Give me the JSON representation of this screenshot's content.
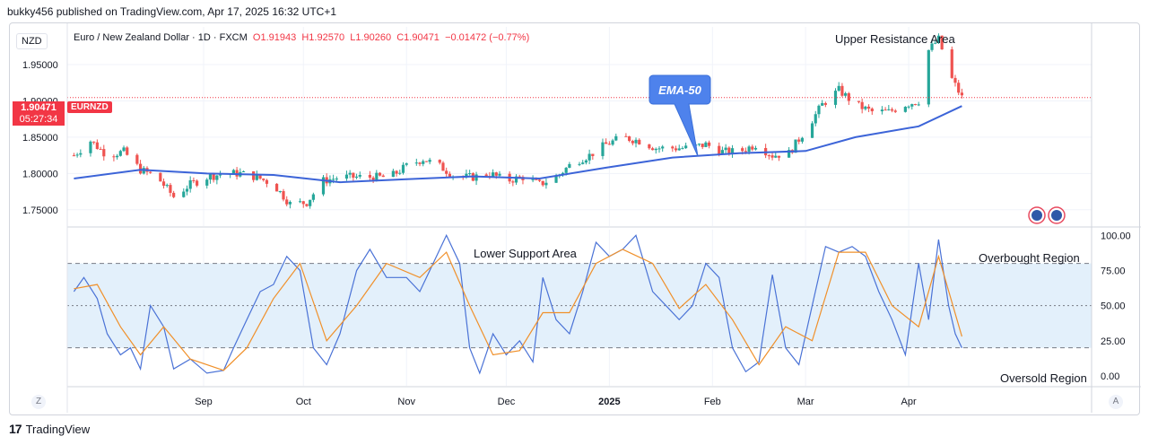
{
  "caption": "bukky456 published on TradingView.com, Apr 17, 2025 16:32 UTC+1",
  "currency_badge": "NZD",
  "legend": {
    "name": "Euro / New Zealand Dollar · 1D · FXCM",
    "open": "O1.91943",
    "high": "H1.92570",
    "low": "L1.90260",
    "close": "C1.90471",
    "change": "−0.01472 (−0.77%)"
  },
  "last_price": "1.90471",
  "countdown": "05:27:34",
  "symbol": "EURNZD",
  "goto_start_button": "Z",
  "auto_scale_button": "A",
  "branding": "TradingView",
  "colors": {
    "up": "#26a69a",
    "down": "#ef5350",
    "ema": "#3c64d8",
    "stoch_k": "#4a72d6",
    "stoch_d": "#f0902a",
    "band_fill": "#e3f0fb",
    "callout": "#4e82ec"
  },
  "chart_data": [
    {
      "type": "candlestick",
      "title": "Euro / New Zealand Dollar · 1D · FXCM",
      "x_ticks": [
        "Sep",
        "Oct",
        "Nov",
        "Dec",
        "2025",
        "Feb",
        "Mar",
        "Apr"
      ],
      "y_ticks": [
        "1.95000",
        "1.90000",
        "1.85000",
        "1.80000",
        "1.75000"
      ],
      "ylim": [
        1.7275,
        2.002
      ],
      "ema_label": "EMA-50",
      "annotations": [
        "Upper Resistance Area"
      ],
      "close_path": [
        {
          "date": "2024-07-24",
          "close": 1.825
        },
        {
          "date": "2024-07-29",
          "close": 1.845
        },
        {
          "date": "2024-08-03",
          "close": 1.825
        },
        {
          "date": "2024-08-08",
          "close": 1.83
        },
        {
          "date": "2024-08-13",
          "close": 1.805
        },
        {
          "date": "2024-08-18",
          "close": 1.795
        },
        {
          "date": "2024-08-23",
          "close": 1.768
        },
        {
          "date": "2024-08-28",
          "close": 1.785
        },
        {
          "date": "2024-09-02",
          "close": 1.795
        },
        {
          "date": "2024-09-07",
          "close": 1.8
        },
        {
          "date": "2024-09-12",
          "close": 1.8
        },
        {
          "date": "2024-09-17",
          "close": 1.795
        },
        {
          "date": "2024-09-22",
          "close": 1.785
        },
        {
          "date": "2024-09-27",
          "close": 1.758
        },
        {
          "date": "2024-10-02",
          "close": 1.76
        },
        {
          "date": "2024-10-07",
          "close": 1.79
        },
        {
          "date": "2024-10-12",
          "close": 1.795
        },
        {
          "date": "2024-10-17",
          "close": 1.795
        },
        {
          "date": "2024-10-22",
          "close": 1.795
        },
        {
          "date": "2024-10-27",
          "close": 1.795
        },
        {
          "date": "2024-11-01",
          "close": 1.81
        },
        {
          "date": "2024-11-06",
          "close": 1.82
        },
        {
          "date": "2024-11-11",
          "close": 1.81
        },
        {
          "date": "2024-11-16",
          "close": 1.795
        },
        {
          "date": "2024-11-21",
          "close": 1.795
        },
        {
          "date": "2024-11-26",
          "close": 1.8
        },
        {
          "date": "2024-12-01",
          "close": 1.79
        },
        {
          "date": "2024-12-06",
          "close": 1.795
        },
        {
          "date": "2024-12-11",
          "close": 1.785
        },
        {
          "date": "2024-12-16",
          "close": 1.795
        },
        {
          "date": "2024-12-21",
          "close": 1.815
        },
        {
          "date": "2024-12-26",
          "close": 1.825
        },
        {
          "date": "2024-12-31",
          "close": 1.84
        },
        {
          "date": "2025-01-05",
          "close": 1.85
        },
        {
          "date": "2025-01-10",
          "close": 1.845
        },
        {
          "date": "2025-01-15",
          "close": 1.835
        },
        {
          "date": "2025-01-20",
          "close": 1.835
        },
        {
          "date": "2025-01-25",
          "close": 1.835
        },
        {
          "date": "2025-01-30",
          "close": 1.84
        },
        {
          "date": "2025-02-04",
          "close": 1.83
        },
        {
          "date": "2025-02-09",
          "close": 1.83
        },
        {
          "date": "2025-02-14",
          "close": 1.84
        },
        {
          "date": "2025-02-19",
          "close": 1.825
        },
        {
          "date": "2025-02-24",
          "close": 1.828
        },
        {
          "date": "2025-03-01",
          "close": 1.86
        },
        {
          "date": "2025-03-06",
          "close": 1.895
        },
        {
          "date": "2025-03-11",
          "close": 1.915
        },
        {
          "date": "2025-03-16",
          "close": 1.895
        },
        {
          "date": "2025-03-21",
          "close": 1.885
        },
        {
          "date": "2025-03-26",
          "close": 1.885
        },
        {
          "date": "2025-03-31",
          "close": 1.895
        },
        {
          "date": "2025-04-04",
          "close": 1.9
        },
        {
          "date": "2025-04-07",
          "close": 1.97
        },
        {
          "date": "2025-04-10",
          "close": 1.985
        },
        {
          "date": "2025-04-14",
          "close": 1.93
        },
        {
          "date": "2025-04-17",
          "close": 1.9047
        }
      ],
      "ema50": [
        {
          "date": "2024-07-24",
          "value": 1.793
        },
        {
          "date": "2024-08-13",
          "value": 1.805
        },
        {
          "date": "2024-09-02",
          "value": 1.8
        },
        {
          "date": "2024-09-22",
          "value": 1.798
        },
        {
          "date": "2024-10-12",
          "value": 1.788
        },
        {
          "date": "2024-11-01",
          "value": 1.792
        },
        {
          "date": "2024-11-21",
          "value": 1.796
        },
        {
          "date": "2024-12-11",
          "value": 1.793
        },
        {
          "date": "2024-12-31",
          "value": 1.808
        },
        {
          "date": "2025-01-20",
          "value": 1.822
        },
        {
          "date": "2025-02-09",
          "value": 1.828
        },
        {
          "date": "2025-03-01",
          "value": 1.831
        },
        {
          "date": "2025-03-16",
          "value": 1.85
        },
        {
          "date": "2025-04-04",
          "value": 1.865
        },
        {
          "date": "2025-04-17",
          "value": 1.893
        }
      ]
    },
    {
      "type": "line",
      "title": "",
      "x_ticks": [
        "Sep",
        "Oct",
        "Nov",
        "Dec",
        "2025",
        "Feb",
        "Mar",
        "Apr"
      ],
      "y_ticks": [
        "100.00",
        "75.00",
        "50.00",
        "25.00",
        "0.00"
      ],
      "ylim": [
        -7,
        104
      ],
      "bands": {
        "upper": 80,
        "middle": 50,
        "lower": 20
      },
      "annotations": [
        "Lower Support Area",
        "Overbought Region",
        "Oversold Region"
      ],
      "series": [
        {
          "values": [
            {
              "date": "2024-07-24",
              "value": 60
            },
            {
              "date": "2024-07-27",
              "value": 70
            },
            {
              "date": "2024-07-31",
              "value": 55
            },
            {
              "date": "2024-08-03",
              "value": 30
            },
            {
              "date": "2024-08-07",
              "value": 15
            },
            {
              "date": "2024-08-10",
              "value": 20
            },
            {
              "date": "2024-08-13",
              "value": 5
            },
            {
              "date": "2024-08-16",
              "value": 50
            },
            {
              "date": "2024-08-20",
              "value": 35
            },
            {
              "date": "2024-08-23",
              "value": 5
            },
            {
              "date": "2024-08-28",
              "value": 12
            },
            {
              "date": "2024-09-02",
              "value": 2
            },
            {
              "date": "2024-09-07",
              "value": 4
            },
            {
              "date": "2024-09-10",
              "value": 20
            },
            {
              "date": "2024-09-14",
              "value": 40
            },
            {
              "date": "2024-09-18",
              "value": 60
            },
            {
              "date": "2024-09-22",
              "value": 65
            },
            {
              "date": "2024-09-26",
              "value": 85
            },
            {
              "date": "2024-09-30",
              "value": 75
            },
            {
              "date": "2024-10-04",
              "value": 20
            },
            {
              "date": "2024-10-08",
              "value": 8
            },
            {
              "date": "2024-10-12",
              "value": 30
            },
            {
              "date": "2024-10-17",
              "value": 75
            },
            {
              "date": "2024-10-21",
              "value": 90
            },
            {
              "date": "2024-10-26",
              "value": 70
            },
            {
              "date": "2024-11-01",
              "value": 70
            },
            {
              "date": "2024-11-05",
              "value": 60
            },
            {
              "date": "2024-11-09",
              "value": 80
            },
            {
              "date": "2024-11-13",
              "value": 100
            },
            {
              "date": "2024-11-17",
              "value": 80
            },
            {
              "date": "2024-11-20",
              "value": 20
            },
            {
              "date": "2024-11-23",
              "value": 2
            },
            {
              "date": "2024-11-27",
              "value": 30
            },
            {
              "date": "2024-12-01",
              "value": 15
            },
            {
              "date": "2024-12-05",
              "value": 25
            },
            {
              "date": "2024-12-09",
              "value": 10
            },
            {
              "date": "2024-12-12",
              "value": 70
            },
            {
              "date": "2024-12-16",
              "value": 40
            },
            {
              "date": "2024-12-20",
              "value": 30
            },
            {
              "date": "2024-12-24",
              "value": 60
            },
            {
              "date": "2024-12-28",
              "value": 95
            },
            {
              "date": "2025-01-01",
              "value": 85
            },
            {
              "date": "2025-01-05",
              "value": 90
            },
            {
              "date": "2025-01-09",
              "value": 100
            },
            {
              "date": "2025-01-14",
              "value": 60
            },
            {
              "date": "2025-01-18",
              "value": 50
            },
            {
              "date": "2025-01-22",
              "value": 40
            },
            {
              "date": "2025-01-26",
              "value": 50
            },
            {
              "date": "2025-01-30",
              "value": 80
            },
            {
              "date": "2025-02-03",
              "value": 70
            },
            {
              "date": "2025-02-07",
              "value": 20
            },
            {
              "date": "2025-02-11",
              "value": 3
            },
            {
              "date": "2025-02-15",
              "value": 10
            },
            {
              "date": "2025-02-19",
              "value": 72
            },
            {
              "date": "2025-02-23",
              "value": 20
            },
            {
              "date": "2025-02-27",
              "value": 8
            },
            {
              "date": "2025-03-03",
              "value": 50
            },
            {
              "date": "2025-03-07",
              "value": 92
            },
            {
              "date": "2025-03-11",
              "value": 88
            },
            {
              "date": "2025-03-15",
              "value": 92
            },
            {
              "date": "2025-03-19",
              "value": 85
            },
            {
              "date": "2025-03-23",
              "value": 60
            },
            {
              "date": "2025-03-27",
              "value": 40
            },
            {
              "date": "2025-03-31",
              "value": 15
            },
            {
              "date": "2025-04-04",
              "value": 80
            },
            {
              "date": "2025-04-07",
              "value": 40
            },
            {
              "date": "2025-04-10",
              "value": 97
            },
            {
              "date": "2025-04-13",
              "value": 50
            },
            {
              "date": "2025-04-15",
              "value": 30
            },
            {
              "date": "2025-04-17",
              "value": 20
            }
          ]
        },
        {
          "values": [
            {
              "date": "2024-07-24",
              "value": 62
            },
            {
              "date": "2024-07-31",
              "value": 65
            },
            {
              "date": "2024-08-07",
              "value": 35
            },
            {
              "date": "2024-08-13",
              "value": 15
            },
            {
              "date": "2024-08-20",
              "value": 35
            },
            {
              "date": "2024-08-28",
              "value": 12
            },
            {
              "date": "2024-09-07",
              "value": 4
            },
            {
              "date": "2024-09-14",
              "value": 20
            },
            {
              "date": "2024-09-22",
              "value": 55
            },
            {
              "date": "2024-09-30",
              "value": 80
            },
            {
              "date": "2024-10-08",
              "value": 25
            },
            {
              "date": "2024-10-17",
              "value": 50
            },
            {
              "date": "2024-10-26",
              "value": 80
            },
            {
              "date": "2024-11-05",
              "value": 70
            },
            {
              "date": "2024-11-13",
              "value": 88
            },
            {
              "date": "2024-11-20",
              "value": 50
            },
            {
              "date": "2024-11-27",
              "value": 15
            },
            {
              "date": "2024-12-05",
              "value": 18
            },
            {
              "date": "2024-12-12",
              "value": 45
            },
            {
              "date": "2024-12-20",
              "value": 45
            },
            {
              "date": "2024-12-28",
              "value": 80
            },
            {
              "date": "2025-01-05",
              "value": 90
            },
            {
              "date": "2025-01-14",
              "value": 80
            },
            {
              "date": "2025-01-22",
              "value": 48
            },
            {
              "date": "2025-01-30",
              "value": 65
            },
            {
              "date": "2025-02-07",
              "value": 40
            },
            {
              "date": "2025-02-15",
              "value": 8
            },
            {
              "date": "2025-02-23",
              "value": 35
            },
            {
              "date": "2025-03-03",
              "value": 25
            },
            {
              "date": "2025-03-11",
              "value": 88
            },
            {
              "date": "2025-03-19",
              "value": 88
            },
            {
              "date": "2025-03-27",
              "value": 50
            },
            {
              "date": "2025-04-04",
              "value": 35
            },
            {
              "date": "2025-04-10",
              "value": 85
            },
            {
              "date": "2025-04-17",
              "value": 28
            }
          ]
        }
      ]
    }
  ]
}
